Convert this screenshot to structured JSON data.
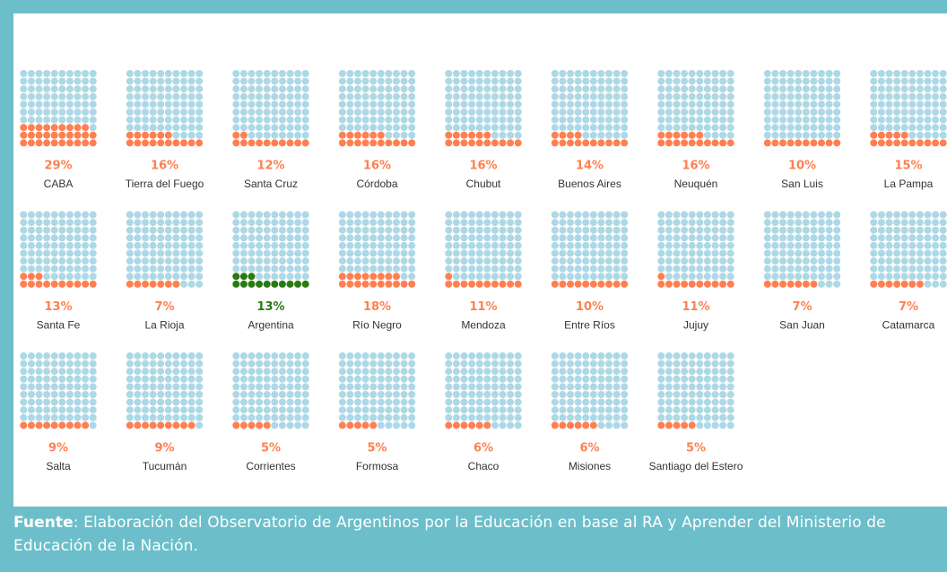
{
  "chart_data": {
    "type": "waffle",
    "categories": [
      "CABA",
      "Tierra del Fuego",
      "Santa Cruz",
      "Córdoba",
      "Chubut",
      "Buenos Aires",
      "Neuquén",
      "San Luis",
      "La Pampa",
      "Santa Fe",
      "La Rioja",
      "Argentina",
      "Río Negro",
      "Mendoza",
      "Entre Ríos",
      "Jujuy",
      "San Juan",
      "Catamarca",
      "Salta",
      "Tucumán",
      "Corrientes",
      "Formosa",
      "Chaco",
      "Misiones",
      "Santiago del Estero"
    ],
    "values": [
      29,
      16,
      12,
      16,
      16,
      14,
      16,
      10,
      15,
      13,
      7,
      13,
      18,
      11,
      10,
      11,
      7,
      7,
      9,
      9,
      5,
      5,
      6,
      6,
      5
    ],
    "value_labels": [
      "29%",
      "16%",
      "12%",
      "16%",
      "16%",
      "14%",
      "16%",
      "10%",
      "15%",
      "13%",
      "7%",
      "13%",
      "18%",
      "11%",
      "10%",
      "11%",
      "7%",
      "7%",
      "9%",
      "9%",
      "5%",
      "5%",
      "6%",
      "6%",
      "5%"
    ],
    "colors": [
      "#ff7f50",
      "#ff7f50",
      "#ff7f50",
      "#ff7f50",
      "#ff7f50",
      "#ff7f50",
      "#ff7f50",
      "#ff7f50",
      "#ff7f50",
      "#ff7f50",
      "#ff7f50",
      "#2a7a12",
      "#ff7f50",
      "#ff7f50",
      "#ff7f50",
      "#ff7f50",
      "#ff7f50",
      "#ff7f50",
      "#ff7f50",
      "#ff7f50",
      "#ff7f50",
      "#ff7f50",
      "#ff7f50",
      "#ff7f50",
      "#ff7f50"
    ],
    "empty_color": "#add8e6"
  },
  "source": {
    "label": "Fuente",
    "text": ": Elaboración del Observatorio de Argentinos por la Educación en base al RA y Aprender del Ministerio de Educación de la Nación."
  }
}
